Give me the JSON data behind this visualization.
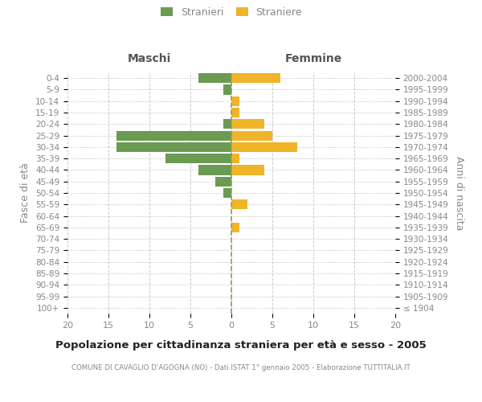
{
  "age_groups": [
    "100+",
    "95-99",
    "90-94",
    "85-89",
    "80-84",
    "75-79",
    "70-74",
    "65-69",
    "60-64",
    "55-59",
    "50-54",
    "45-49",
    "40-44",
    "35-39",
    "30-34",
    "25-29",
    "20-24",
    "15-19",
    "10-14",
    "5-9",
    "0-4"
  ],
  "birth_years": [
    "≤ 1904",
    "1905-1909",
    "1910-1914",
    "1915-1919",
    "1920-1924",
    "1925-1929",
    "1930-1934",
    "1935-1939",
    "1940-1944",
    "1945-1949",
    "1950-1954",
    "1955-1959",
    "1960-1964",
    "1965-1969",
    "1970-1974",
    "1975-1979",
    "1980-1984",
    "1985-1989",
    "1990-1994",
    "1995-1999",
    "2000-2004"
  ],
  "maschi": [
    0,
    0,
    0,
    0,
    0,
    0,
    0,
    0,
    0,
    0,
    1,
    2,
    4,
    8,
    14,
    14,
    1,
    0,
    0,
    1,
    4
  ],
  "femmine": [
    0,
    0,
    0,
    0,
    0,
    0,
    0,
    1,
    0,
    2,
    0,
    0,
    4,
    1,
    8,
    5,
    4,
    1,
    1,
    0,
    6
  ],
  "maschi_color": "#6b9a52",
  "femmine_color": "#f0b429",
  "title": "Popolazione per cittadinanza straniera per età e sesso - 2005",
  "subtitle": "COMUNE DI CAVAGLIO D'AGOGNA (NO) - Dati ISTAT 1° gennaio 2005 - Elaborazione TUTTITALIA.IT",
  "ylabel_left": "Fasce di età",
  "ylabel_right": "Anni di nascita",
  "header_maschi": "Maschi",
  "header_femmine": "Femmine",
  "legend_stranieri": "Stranieri",
  "legend_straniere": "Straniere",
  "xlim": 20,
  "background_color": "#ffffff",
  "grid_color": "#cccccc",
  "bar_height": 0.85,
  "text_color": "#888888",
  "title_color": "#222222",
  "header_color": "#555555"
}
